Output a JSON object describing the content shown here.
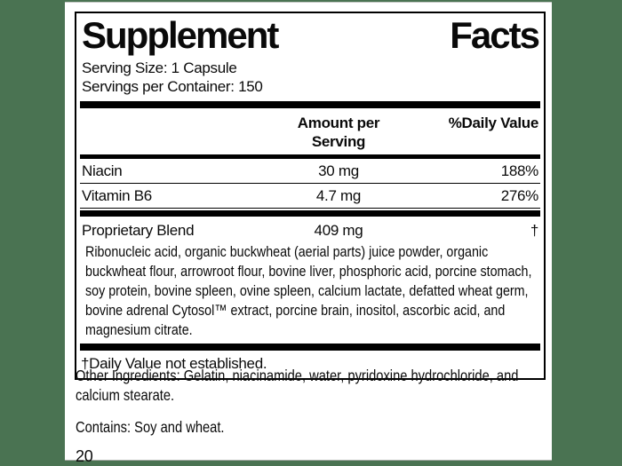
{
  "colors": {
    "page_background": "#4A7352",
    "label_background": "#FFFFFF",
    "rule_color": "#000000",
    "text_color": "#0A0A0A"
  },
  "supplement_facts": {
    "title": "Supplement Facts",
    "title_words": {
      "first": "Supplement",
      "second": "Facts"
    },
    "serving_size": "Serving Size: 1 Capsule",
    "servings_per_container": "Servings per Container: 150",
    "columns": {
      "amount_header": "Amount per Serving",
      "daily_value_header": "%Daily Value"
    },
    "nutrients": [
      {
        "name": "Niacin",
        "amount": "30 mg",
        "daily_value": "188%"
      },
      {
        "name": "Vitamin B6",
        "amount": "4.7 mg",
        "daily_value": "276%"
      }
    ],
    "proprietary_blend": {
      "name": "Proprietary Blend",
      "amount": "409 mg",
      "daily_value": "†",
      "description": "Ribonucleic acid, organic buckwheat (aerial parts) juice powder, organic buckwheat flour, arrowroot flour, bovine liver, phosphoric acid, porcine stomach, soy protein, bovine spleen, ovine spleen, calcium lactate, defatted wheat germ, bovine adrenal Cytosol™ extract, porcine brain, inositol, ascorbic acid, and magnesium citrate."
    },
    "footnote": "†Daily Value not established."
  },
  "footer": {
    "other_ingredients": "Other Ingredients: Gelatin, niacinamide, water, pyridoxine hydrochloride, and calcium stearate.",
    "contains": "Contains: Soy and wheat.",
    "page_number": "20"
  }
}
